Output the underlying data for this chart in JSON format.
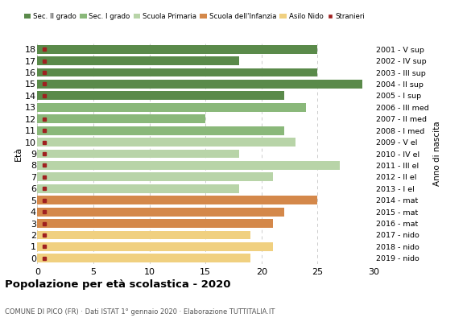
{
  "ages": [
    18,
    17,
    16,
    15,
    14,
    13,
    12,
    11,
    10,
    9,
    8,
    7,
    6,
    5,
    4,
    3,
    2,
    1,
    0
  ],
  "values": [
    25,
    18,
    25,
    29,
    22,
    24,
    15,
    22,
    23,
    18,
    27,
    21,
    18,
    25,
    22,
    21,
    19,
    21,
    19
  ],
  "stranieri": [
    1,
    1,
    1,
    1,
    1,
    0,
    1,
    2,
    1,
    1,
    1,
    1,
    1,
    1,
    1,
    2,
    2,
    2,
    1
  ],
  "right_labels": [
    "2001 - V sup",
    "2002 - IV sup",
    "2003 - III sup",
    "2004 - II sup",
    "2005 - I sup",
    "2006 - III med",
    "2007 - II med",
    "2008 - I med",
    "2009 - V el",
    "2010 - IV el",
    "2011 - III el",
    "2012 - II el",
    "2013 - I el",
    "2014 - mat",
    "2015 - mat",
    "2016 - mat",
    "2017 - nido",
    "2018 - nido",
    "2019 - nido"
  ],
  "bar_colors": [
    "#5a8a4a",
    "#5a8a4a",
    "#5a8a4a",
    "#5a8a4a",
    "#5a8a4a",
    "#8ab87a",
    "#8ab87a",
    "#8ab87a",
    "#b8d4a8",
    "#b8d4a8",
    "#b8d4a8",
    "#b8d4a8",
    "#b8d4a8",
    "#d4884a",
    "#d4884a",
    "#d4884a",
    "#f0d080",
    "#f0d080",
    "#f0d080"
  ],
  "legend_labels": [
    "Sec. II grado",
    "Sec. I grado",
    "Scuola Primaria",
    "Scuola dell'Infanzia",
    "Asilo Nido",
    "Stranieri"
  ],
  "legend_colors": [
    "#5a8a4a",
    "#8ab87a",
    "#b8d4a8",
    "#d4884a",
    "#f0d080",
    "#a02020"
  ],
  "stranieri_color": "#a02020",
  "title": "Popolazione per età scolastica - 2020",
  "subtitle": "COMUNE DI PICO (FR) · Dati ISTAT 1° gennaio 2020 · Elaborazione TUTTITALIA.IT",
  "ylabel_eta": "Età",
  "ylabel_anno": "Anno di nascita",
  "xlim": [
    0,
    30
  ],
  "xticks": [
    0,
    5,
    10,
    15,
    20,
    25,
    30
  ],
  "background_color": "#ffffff",
  "grid_color": "#cccccc"
}
